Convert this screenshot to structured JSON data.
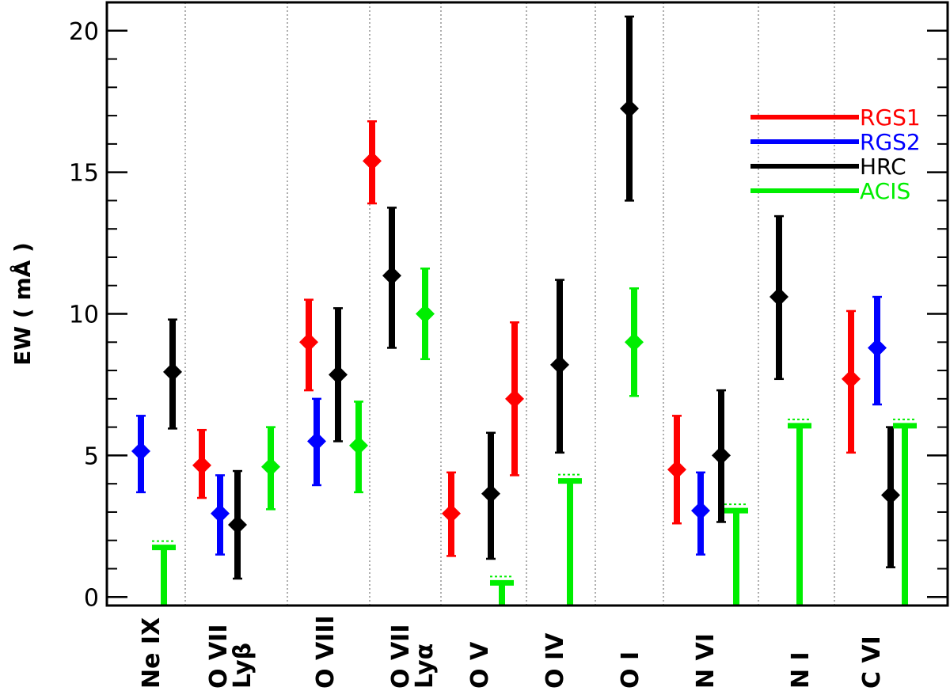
{
  "chart_data": {
    "type": "scatter",
    "ylabel": "EW ( mÅ )",
    "ylim": [
      -0.3,
      21
    ],
    "yticks": [
      0,
      5,
      10,
      15,
      20
    ],
    "grid": "vertical-dotted-separators",
    "legend_placement": "top-right",
    "categories": [
      {
        "lines": [
          "Ne IX"
        ]
      },
      {
        "lines": [
          "O VII",
          "Lyβ"
        ]
      },
      {
        "lines": [
          "O VIII"
        ]
      },
      {
        "lines": [
          "O VII",
          "Lyα"
        ]
      },
      {
        "lines": [
          "O V"
        ]
      },
      {
        "lines": [
          "O IV"
        ]
      },
      {
        "lines": [
          "O I"
        ]
      },
      {
        "lines": [
          "N VI"
        ]
      },
      {
        "lines": [
          "N I"
        ]
      },
      {
        "lines": [
          "C VI"
        ]
      }
    ],
    "series": [
      {
        "name": "RGS1",
        "color": "#ff0000",
        "points": [
          {
            "cat": 1,
            "y": 4.65,
            "lo": 3.5,
            "hi": 5.9
          },
          {
            "cat": 2,
            "y": 9.0,
            "lo": 7.3,
            "hi": 10.5
          },
          {
            "cat": 3,
            "y": 15.4,
            "lo": 13.9,
            "hi": 16.8
          },
          {
            "cat": 4,
            "y": 2.95,
            "lo": 1.45,
            "hi": 4.4
          },
          {
            "cat": 5,
            "y": 7.0,
            "lo": 4.3,
            "hi": 9.7
          },
          {
            "cat": 7,
            "y": 4.5,
            "lo": 2.6,
            "hi": 6.4
          },
          {
            "cat": 9,
            "y": 7.7,
            "lo": 5.1,
            "hi": 10.1
          }
        ]
      },
      {
        "name": "RGS2",
        "color": "#0000ff",
        "points": [
          {
            "cat": 0,
            "y": 5.15,
            "lo": 3.7,
            "hi": 6.4
          },
          {
            "cat": 1,
            "y": 2.95,
            "lo": 1.5,
            "hi": 4.3
          },
          {
            "cat": 2,
            "y": 5.5,
            "lo": 3.95,
            "hi": 7.0
          },
          {
            "cat": 7,
            "y": 3.05,
            "lo": 1.5,
            "hi": 4.4
          },
          {
            "cat": 9,
            "y": 8.8,
            "lo": 6.8,
            "hi": 10.6
          }
        ]
      },
      {
        "name": "HRC",
        "color": "#000000",
        "points": [
          {
            "cat": 0,
            "y": 7.95,
            "lo": 5.95,
            "hi": 9.8
          },
          {
            "cat": 1,
            "y": 2.55,
            "lo": 0.65,
            "hi": 4.45
          },
          {
            "cat": 2,
            "y": 7.85,
            "lo": 5.5,
            "hi": 10.2
          },
          {
            "cat": 3,
            "y": 11.35,
            "lo": 8.8,
            "hi": 13.75
          },
          {
            "cat": 4,
            "y": 3.65,
            "lo": 1.35,
            "hi": 5.8
          },
          {
            "cat": 5,
            "y": 8.2,
            "lo": 5.1,
            "hi": 11.2
          },
          {
            "cat": 6,
            "y": 17.25,
            "lo": 14.0,
            "hi": 20.5
          },
          {
            "cat": 7,
            "y": 5.0,
            "lo": 2.65,
            "hi": 7.3
          },
          {
            "cat": 8,
            "y": 10.6,
            "lo": 7.7,
            "hi": 13.45
          },
          {
            "cat": 9,
            "y": 3.6,
            "lo": 1.05,
            "hi": 6.0
          }
        ]
      },
      {
        "name": "ACIS",
        "color": "#00ee00",
        "points": [
          {
            "cat": 1,
            "y": 4.6,
            "lo": 3.1,
            "hi": 6.0
          },
          {
            "cat": 2,
            "y": 5.35,
            "lo": 3.7,
            "hi": 6.9
          },
          {
            "cat": 3,
            "y": 10.0,
            "lo": 8.4,
            "hi": 11.6
          },
          {
            "cat": 6,
            "y": 9.0,
            "lo": 7.1,
            "hi": 10.9
          }
        ],
        "upper_limits": [
          {
            "cat": 0,
            "y": 1.75
          },
          {
            "cat": 4,
            "y": 0.5
          },
          {
            "cat": 5,
            "y": 4.1
          },
          {
            "cat": 7,
            "y": 3.05
          },
          {
            "cat": 8,
            "y": 6.05
          },
          {
            "cat": 9,
            "y": 6.05
          }
        ]
      }
    ]
  }
}
